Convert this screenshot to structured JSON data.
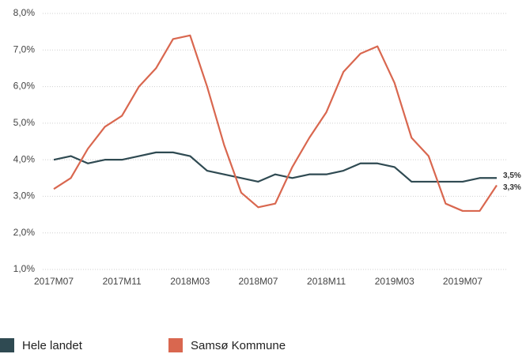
{
  "chart_data": {
    "type": "line",
    "categories": [
      "2017M07",
      null,
      null,
      null,
      "2017M11",
      null,
      null,
      null,
      "2018M03",
      null,
      null,
      null,
      "2018M07",
      null,
      null,
      null,
      "2018M11",
      null,
      null,
      null,
      "2019M03",
      null,
      null,
      null,
      "2019M07",
      null,
      null
    ],
    "series": [
      {
        "name": "Hele landet",
        "color": "#2f4a52",
        "values": [
          4.0,
          4.1,
          3.9,
          4.0,
          4.0,
          4.1,
          4.2,
          4.2,
          4.1,
          3.7,
          3.6,
          3.5,
          3.4,
          3.6,
          3.5,
          3.6,
          3.6,
          3.7,
          3.9,
          3.9,
          3.8,
          3.4,
          3.4,
          3.4,
          3.4,
          3.5,
          3.5
        ],
        "value_labels": [
          null,
          null,
          null,
          null,
          null,
          null,
          null,
          null,
          null,
          null,
          null,
          null,
          null,
          null,
          null,
          null,
          null,
          null,
          null,
          null,
          null,
          null,
          null,
          null,
          null,
          null,
          "3,5%"
        ]
      },
      {
        "name": "Samsø Kommune",
        "color": "#d9674f",
        "values": [
          3.2,
          3.5,
          4.3,
          4.9,
          5.2,
          6.0,
          6.5,
          7.3,
          7.4,
          6.0,
          4.4,
          3.1,
          2.7,
          2.8,
          3.8,
          4.6,
          5.3,
          6.4,
          6.9,
          7.1,
          6.1,
          4.6,
          4.1,
          2.8,
          2.6,
          2.6,
          3.3
        ],
        "value_labels": [
          null,
          null,
          null,
          null,
          null,
          null,
          null,
          null,
          null,
          null,
          null,
          null,
          null,
          null,
          null,
          null,
          null,
          null,
          null,
          null,
          null,
          null,
          null,
          null,
          null,
          null,
          "3,3%"
        ]
      }
    ],
    "ylim": [
      1,
      8
    ],
    "yticks": [
      {
        "value": 1,
        "label": "1,0%"
      },
      {
        "value": 2,
        "label": "2,0%"
      },
      {
        "value": 3,
        "label": "3,0%"
      },
      {
        "value": 4,
        "label": "4,0%"
      },
      {
        "value": 5,
        "label": "5,0%"
      },
      {
        "value": 6,
        "label": "6,0%"
      },
      {
        "value": 7,
        "label": "7,0%"
      },
      {
        "value": 8,
        "label": "8,0%"
      }
    ],
    "grid": true,
    "legend": "bottom"
  }
}
